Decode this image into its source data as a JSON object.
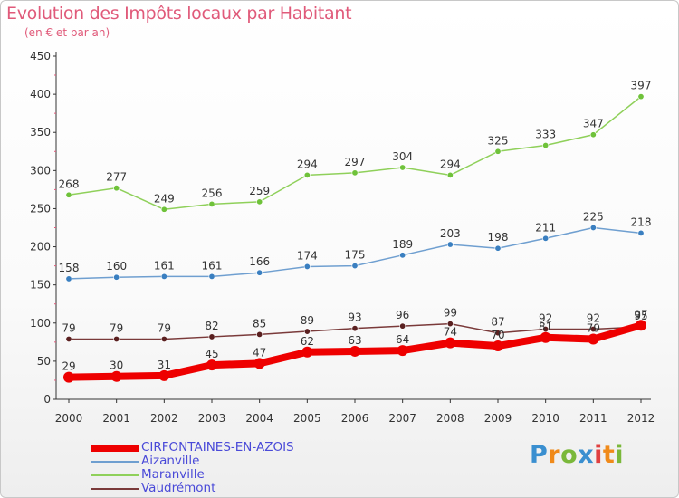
{
  "title": "Evolution des Impôts locaux par Habitant",
  "subtitle": "(en € et par an)",
  "chart_data": {
    "type": "line",
    "x": [
      "2000",
      "2001",
      "2002",
      "2003",
      "2004",
      "2005",
      "2006",
      "2007",
      "2008",
      "2009",
      "2010",
      "2011",
      "2012"
    ],
    "y_ticks": [
      0,
      50,
      100,
      150,
      200,
      250,
      300,
      350,
      400,
      450
    ],
    "ylim": [
      0,
      450
    ],
    "grid": false,
    "legend_position": "bottom-left",
    "series": [
      {
        "name": "Maranville",
        "color": "#8fd05a",
        "marker": "#6fc23a",
        "width": 1.5,
        "values": [
          268,
          277,
          249,
          256,
          259,
          294,
          297,
          304,
          294,
          325,
          333,
          347,
          397
        ]
      },
      {
        "name": "Aizanville",
        "color": "#6f9fd0",
        "marker": "#3a7fc0",
        "width": 1.5,
        "values": [
          158,
          160,
          161,
          161,
          166,
          174,
          175,
          189,
          203,
          198,
          211,
          225,
          218
        ]
      },
      {
        "name": "Vaudrémont",
        "color": "#7a3a3a",
        "marker": "#5a2020",
        "width": 1.5,
        "values": [
          79,
          79,
          79,
          82,
          85,
          89,
          93,
          96,
          99,
          87,
          92,
          92,
          95
        ]
      },
      {
        "name": "CIRFONTAINES-EN-AZOIS",
        "color": "#ee0000",
        "marker": "#ee0000",
        "width": 8,
        "values": [
          29,
          30,
          31,
          45,
          47,
          62,
          63,
          64,
          74,
          70,
          81,
          79,
          97
        ]
      }
    ],
    "legend_order": [
      "CIRFONTAINES-EN-AZOIS",
      "Aizanville",
      "Maranville",
      "Vaudrémont"
    ]
  },
  "logo": {
    "letters": [
      "P",
      "r",
      "o",
      "x",
      "i",
      "t",
      "i"
    ],
    "colors": [
      "#3a8fd0",
      "#f08a1a",
      "#7ab83a",
      "#3a8fd0",
      "#e04040",
      "#f08a1a",
      "#7ab83a"
    ]
  }
}
